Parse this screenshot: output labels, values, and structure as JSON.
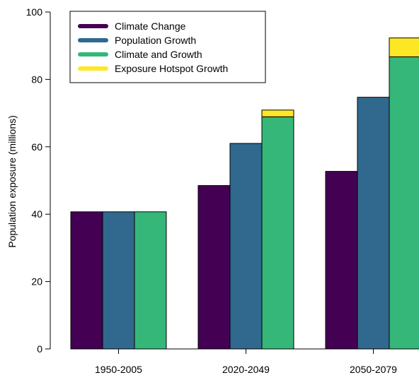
{
  "chart_data": {
    "type": "bar",
    "stacked_extra": true,
    "categories": [
      "1950-2005",
      "2020-2049",
      "2050-2079"
    ],
    "ylabel": "Population exposure (millions)",
    "ylim": [
      0,
      100
    ],
    "yticks": [
      0,
      20,
      40,
      60,
      80,
      100
    ],
    "series": [
      {
        "name": "Climate Change",
        "color": "#440154",
        "values": [
          40.7,
          48.5,
          52.7
        ]
      },
      {
        "name": "Population Growth",
        "color": "#31688E",
        "values": [
          40.7,
          61.0,
          74.7
        ]
      },
      {
        "name": "Climate and Growth",
        "color": "#35B779",
        "values": [
          40.7,
          68.9,
          86.7
        ]
      },
      {
        "name": "Exposure Hotspot Growth",
        "color": "#FDE725",
        "values": [
          0,
          2.0,
          5.6
        ]
      }
    ],
    "legend_position": "top-left",
    "grid": false
  }
}
